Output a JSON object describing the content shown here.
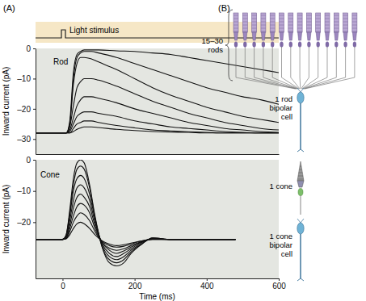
{
  "chart_data": [
    {
      "type": "line",
      "title": "Rod",
      "ylabel": "Inward current (pA)",
      "xlim": [
        -75,
        600
      ],
      "ylim": [
        -35,
        0
      ],
      "yticks": [
        0,
        {
          "value": -10,
          "label": "–10"
        },
        {
          "value": -20,
          "label": "–20"
        },
        {
          "value": -30,
          "label": "–30"
        }
      ],
      "tick_labels": "y",
      "grid": false,
      "x": [
        -75,
        -50,
        -25,
        0,
        10,
        20,
        30,
        40,
        50,
        60,
        80,
        100,
        150,
        200,
        250,
        300,
        350,
        400,
        450,
        500,
        550,
        600
      ],
      "series": [
        {
          "color": "#111111",
          "values": [
            -28,
            -28,
            -28,
            -28,
            -28,
            -24,
            -8,
            -2,
            -1,
            -0.5,
            -0.5,
            -0.5,
            -0.8,
            -1,
            -1.5,
            -2,
            -3,
            -4,
            -5,
            -6,
            -7,
            -8
          ]
        },
        {
          "color": "#111111",
          "values": [
            -28,
            -28,
            -28,
            -28,
            -28,
            -25,
            -10,
            -3,
            -1.5,
            -1,
            -1,
            -1.5,
            -3,
            -5,
            -7,
            -9,
            -11,
            -13,
            -14.5,
            -16,
            -17,
            -18.5
          ]
        },
        {
          "color": "#111111",
          "values": [
            -28,
            -28,
            -28,
            -28,
            -28,
            -25,
            -12,
            -5,
            -3,
            -3,
            -3.5,
            -4.5,
            -7,
            -10,
            -13,
            -15.5,
            -17.5,
            -19.5,
            -21,
            -22.5,
            -23.5,
            -24.5
          ]
        },
        {
          "color": "#111111",
          "values": [
            -28,
            -28,
            -28,
            -28,
            -28,
            -26,
            -19,
            -13,
            -11,
            -10,
            -10,
            -10.5,
            -12.5,
            -15,
            -17.5,
            -19.5,
            -21.5,
            -23,
            -24.5,
            -25.5,
            -26.5,
            -27
          ]
        },
        {
          "color": "#111111",
          "values": [
            -28,
            -28,
            -28,
            -28,
            -28,
            -27,
            -23,
            -19,
            -17,
            -16,
            -16,
            -16.5,
            -18,
            -20,
            -21.5,
            -23,
            -24.5,
            -25.5,
            -26.5,
            -27,
            -27.5,
            -27.8
          ]
        },
        {
          "color": "#111111",
          "values": [
            -28,
            -28,
            -28,
            -28,
            -28,
            -27.5,
            -25,
            -22.5,
            -21.5,
            -21,
            -21,
            -21.5,
            -22.5,
            -24,
            -25,
            -26,
            -26.5,
            -27,
            -27.5,
            -27.8,
            -28,
            -28
          ]
        },
        {
          "color": "#111111",
          "values": [
            -28,
            -28,
            -28,
            -28,
            -28,
            -28,
            -26.5,
            -25,
            -24.5,
            -24,
            -24,
            -24.5,
            -25.5,
            -26.3,
            -27,
            -27.3,
            -27.6,
            -27.8,
            -28,
            -28,
            -28,
            -28
          ]
        },
        {
          "color": "#111111",
          "values": [
            -28,
            -28,
            -28,
            -28,
            -28,
            -28,
            -27.5,
            -26.8,
            -26.3,
            -26,
            -26,
            -26.2,
            -26.8,
            -27.2,
            -27.5,
            -27.7,
            -27.8,
            -28,
            -28,
            -28,
            -28,
            -28
          ]
        }
      ]
    },
    {
      "type": "line",
      "title": "Cone",
      "ylabel": "Inward current (pA)",
      "xlabel": "Time (ms)",
      "xlim": [
        -75,
        600
      ],
      "ylim": [
        -38,
        0
      ],
      "xticks": [
        0,
        200,
        400,
        600
      ],
      "yticks": [
        0,
        {
          "value": -10,
          "label": "–10"
        },
        {
          "value": -20,
          "label": "–20"
        }
      ],
      "grid": false,
      "x": [
        -75,
        -50,
        -25,
        0,
        10,
        20,
        30,
        40,
        50,
        60,
        75,
        90,
        110,
        130,
        150,
        170,
        190,
        220,
        250,
        300,
        350,
        400,
        450,
        480
      ],
      "series": [
        {
          "color": "#111111",
          "values": [
            -25.5,
            -25.5,
            -25.5,
            -25.5,
            -24,
            -16,
            -6,
            -1,
            0,
            -1,
            -8,
            -18,
            -28,
            -33,
            -34,
            -33,
            -30,
            -27,
            -25,
            -25.5,
            -25.5,
            -25.5,
            -25.5,
            -25.5
          ]
        },
        {
          "color": "#111111",
          "values": [
            -25.5,
            -25.5,
            -25.5,
            -25.5,
            -24,
            -17,
            -8,
            -3,
            -2,
            -3,
            -9,
            -18.5,
            -28,
            -32,
            -33,
            -32,
            -29.5,
            -27,
            -25,
            -25.5,
            -25.5,
            -25.5,
            -25.5,
            -25.5
          ]
        },
        {
          "color": "#111111",
          "values": [
            -25.5,
            -25.5,
            -25.5,
            -25.5,
            -24.5,
            -18,
            -10,
            -6,
            -5,
            -6,
            -11,
            -19,
            -27.5,
            -31,
            -32,
            -31,
            -29,
            -26.8,
            -25.2,
            -25.5,
            -25.5,
            -25.5,
            -25.5,
            -25.5
          ]
        },
        {
          "color": "#111111",
          "values": [
            -25.5,
            -25.5,
            -25.5,
            -25.5,
            -24.5,
            -19.5,
            -13,
            -9,
            -8,
            -9,
            -13,
            -20,
            -27,
            -30,
            -31,
            -30,
            -28.5,
            -26.5,
            -25.3,
            -25.5,
            -25.5,
            -25.5,
            -25.5,
            -25.5
          ]
        },
        {
          "color": "#111111",
          "values": [
            -25.5,
            -25.5,
            -25.5,
            -25.5,
            -25,
            -21,
            -15.5,
            -12,
            -11,
            -12,
            -15,
            -21,
            -26.5,
            -29,
            -30,
            -29.2,
            -28,
            -26.3,
            -25.3,
            -25.5,
            -25.5,
            -25.5,
            -25.5,
            -25.5
          ]
        },
        {
          "color": "#111111",
          "values": [
            -25.5,
            -25.5,
            -25.5,
            -25.5,
            -25,
            -22,
            -18,
            -15,
            -14,
            -14.5,
            -17,
            -22,
            -26.5,
            -28.3,
            -29,
            -28.5,
            -27.5,
            -26.2,
            -25.4,
            -25.5,
            -25.5,
            -25.5,
            -25.5,
            -25.5
          ]
        },
        {
          "color": "#111111",
          "values": [
            -25.5,
            -25.5,
            -25.5,
            -25.5,
            -25.2,
            -23,
            -20,
            -18,
            -17,
            -17.5,
            -19.5,
            -23,
            -26.2,
            -27.5,
            -28,
            -27.7,
            -27,
            -26,
            -25.5,
            -25.5,
            -25.5,
            -25.5,
            -25.5,
            -25.5
          ]
        },
        {
          "color": "#111111",
          "values": [
            -25.5,
            -25.5,
            -25.5,
            -25.5,
            -25.3,
            -24,
            -22,
            -20.5,
            -20,
            -20.5,
            -22,
            -24,
            -26,
            -27,
            -27.5,
            -27.2,
            -26.7,
            -26,
            -25.5,
            -25.5,
            -25.5,
            -25.5,
            -25.5,
            -25.5
          ]
        }
      ]
    }
  ],
  "figure": {
    "panel_labels": [
      "(A)",
      "(B)"
    ],
    "stimulus_label": "Light stimulus",
    "diagram": {
      "rods_label": [
        "15–30",
        "rods"
      ],
      "rod_bipolar_label": [
        "1 rod",
        "bipolar",
        "cell"
      ],
      "cone_label": [
        "1 cone"
      ],
      "cone_bipolar_label": [
        "1 cone",
        "bipolar",
        "cell"
      ]
    }
  }
}
